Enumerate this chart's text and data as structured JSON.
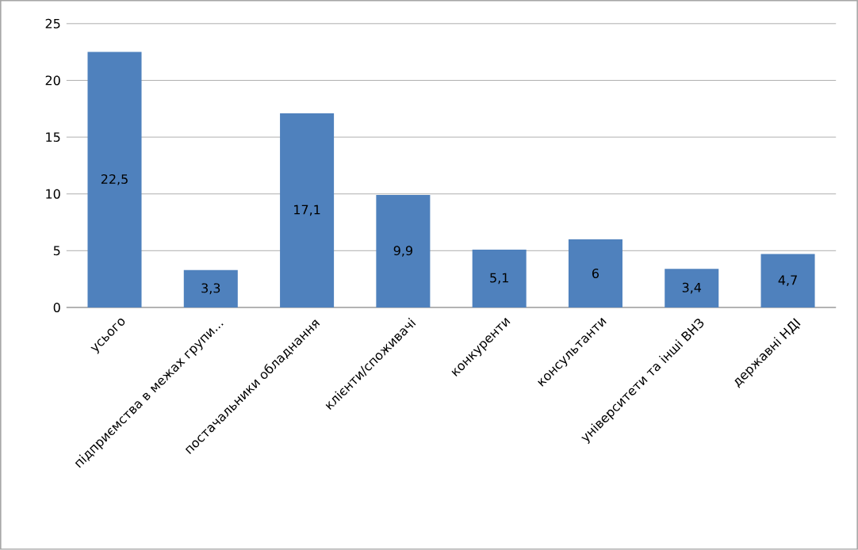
{
  "chart_data": {
    "type": "bar",
    "categories": [
      "усього",
      "підприємства в межах групи...",
      "постачальники обладнання",
      "клієнти/споживачі",
      "конкуренти",
      "консультанти",
      "університети та інші ВНЗ",
      "державні НДІ"
    ],
    "values": [
      22.5,
      3.3,
      17.1,
      9.9,
      5.1,
      6,
      3.4,
      4.7
    ],
    "value_labels": [
      "22,5",
      "3,3",
      "17,1",
      "9,9",
      "5,1",
      "6",
      "3,4",
      "4,7"
    ],
    "color": "#4f81bd",
    "ylim": [
      0,
      25
    ],
    "yticks": [
      0,
      5,
      10,
      15,
      20,
      25
    ],
    "grid": "y"
  }
}
